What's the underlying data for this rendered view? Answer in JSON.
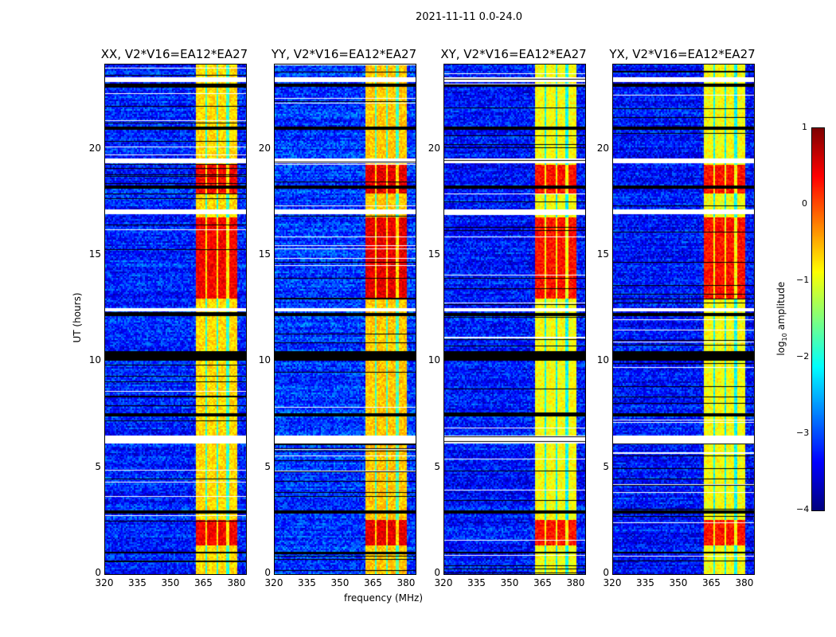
{
  "chart_data": {
    "type": "heatmap",
    "title": "2021-11-11 0.0-24.0",
    "xlabel": "frequency (MHz)",
    "ylabel": "UT (hours)",
    "xlim": [
      320,
      384
    ],
    "ylim": [
      0,
      24
    ],
    "xticks": [
      "320",
      "335",
      "350",
      "365",
      "380"
    ],
    "xtick_values": [
      320,
      335,
      350,
      365,
      380
    ],
    "yticks": [
      "0",
      "5",
      "10",
      "15",
      "20"
    ],
    "ytick_values": [
      0,
      5,
      10,
      15,
      20
    ],
    "colormap": "jet",
    "colorbar": {
      "label": "log10 amplitude",
      "label_main": "log",
      "label_sub": "10",
      "label_rest": " amplitude",
      "range": [
        -4,
        1
      ],
      "ticks": [
        "1",
        "0",
        "−1",
        "−2",
        "−3",
        "−4"
      ],
      "tick_values": [
        1,
        0,
        -1,
        -2,
        -3,
        -4
      ]
    },
    "panels": [
      {
        "title": "XX, V2*V16=EA12*EA27",
        "background": -3.2,
        "band_level": -0.7,
        "strong": 0.4
      },
      {
        "title": "YY, V2*V16=EA12*EA27",
        "background": -3.1,
        "band_level": -0.6,
        "strong": 0.5
      },
      {
        "title": "XY, V2*V16=EA12*EA27",
        "background": -3.3,
        "band_level": -0.9,
        "strong": 0.3
      },
      {
        "title": "YX, V2*V16=EA12*EA27",
        "background": -3.3,
        "band_level": -0.9,
        "strong": 0.3
      }
    ],
    "rfi_band_mhz": [
      360.5,
      380
    ],
    "band_gaps_mhz": [
      365.5,
      370.5,
      375.5
    ],
    "hot_periods_hours": [
      [
        18.0,
        19.3
      ],
      [
        1.4,
        2.6
      ],
      [
        13.0,
        16.8
      ]
    ],
    "flagged_periods_hours": [
      [
        23.2,
        23.4
      ],
      [
        19.4,
        19.6
      ],
      [
        17.0,
        17.2
      ],
      [
        12.4,
        12.6
      ],
      [
        6.2,
        6.6
      ]
    ],
    "dark_periods_hours": [
      [
        23.0,
        23.1
      ],
      [
        10.1,
        10.5
      ],
      [
        12.2,
        12.3
      ],
      [
        7.5,
        7.6
      ],
      [
        2.9,
        3.0
      ],
      [
        1.0,
        1.1
      ],
      [
        18.2,
        18.3
      ],
      [
        21.0,
        21.1
      ]
    ]
  }
}
